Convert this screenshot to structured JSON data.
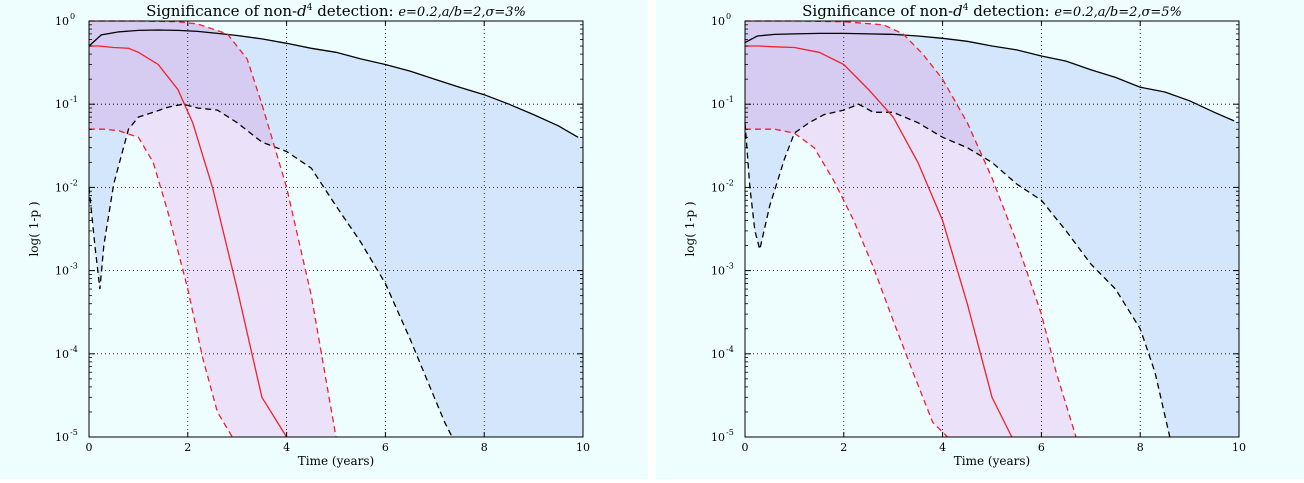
{
  "chart_data": [
    {
      "type": "line",
      "title_prefix": "Significance of non-",
      "title_d": "d",
      "title_exp": "4",
      "title_middle": " detection: ",
      "title_params": "e=0.2,a/b=2,σ=3%",
      "xlabel": "Time (years)",
      "ylabel": "log( 1-p )",
      "xlim": [
        0,
        10
      ],
      "ylim_log10": [
        -5,
        0
      ],
      "yscale": "log",
      "grid": true,
      "x_ticks": [
        "0",
        "2",
        "4",
        "6",
        "8",
        "10"
      ],
      "y_ticks": [
        "10",
        "10",
        "10",
        "10",
        "10",
        "10"
      ],
      "y_tick_exps": [
        "0",
        "-1",
        "-2",
        "-3",
        "-4",
        "-5"
      ],
      "colors": {
        "blue_band": "#d4e6fb",
        "purple_band": "#d6cbf0",
        "pink_band": "#eadcf7",
        "background": "#eefefe",
        "black": "#000000",
        "red": "#f0222b"
      },
      "series": [
        {
          "style": "black-solid",
          "x": [
            0,
            0.25,
            0.6,
            1.0,
            1.4,
            1.8,
            2.2,
            2.6,
            3.0,
            3.5,
            4.0,
            4.5,
            5.0,
            5.5,
            6.0,
            6.5,
            7.0,
            7.5,
            8.0,
            8.5,
            9.0,
            9.5,
            9.9
          ],
          "y": [
            0.5,
            0.68,
            0.74,
            0.77,
            0.78,
            0.77,
            0.75,
            0.71,
            0.67,
            0.61,
            0.54,
            0.47,
            0.42,
            0.35,
            0.3,
            0.25,
            0.2,
            0.16,
            0.13,
            0.1,
            0.075,
            0.055,
            0.04
          ]
        },
        {
          "style": "black-dashed",
          "x": [
            0,
            0.12,
            0.22,
            0.3,
            0.5,
            0.8,
            1.0,
            1.3,
            1.6,
            1.9,
            2.2,
            2.6,
            3.0,
            3.5,
            4.0,
            4.5,
            5.0,
            5.5,
            6.0,
            6.5,
            6.9,
            7.2,
            7.35
          ],
          "y": [
            0.01,
            0.002,
            0.0006,
            0.002,
            0.011,
            0.05,
            0.07,
            0.08,
            0.092,
            0.1,
            0.09,
            0.085,
            0.06,
            0.035,
            0.027,
            0.017,
            0.006,
            0.0022,
            0.0007,
            0.00015,
            4e-05,
            1.5e-05,
            1e-05
          ]
        },
        {
          "style": "red-solid",
          "x": [
            0,
            0.2,
            0.5,
            0.8,
            1.0,
            1.4,
            1.8,
            2.1,
            2.5,
            3.0,
            3.5,
            4.0
          ],
          "y": [
            0.5,
            0.5,
            0.48,
            0.47,
            0.42,
            0.3,
            0.15,
            0.06,
            0.01,
            0.0006,
            3e-05,
            1e-05
          ]
        },
        {
          "style": "red-dashed-upper",
          "x": [
            0,
            0.3,
            1.0,
            1.8,
            2.2,
            2.8,
            3.2,
            3.5,
            4.0,
            4.5,
            5.0
          ],
          "y": [
            1.0,
            1.0,
            1.0,
            0.98,
            0.92,
            0.7,
            0.35,
            0.1,
            0.01,
            0.0005,
            1e-05
          ]
        },
        {
          "style": "red-dashed-lower",
          "x": [
            0,
            0.3,
            0.6,
            1.0,
            1.3,
            1.6,
            2.0,
            2.3,
            2.6,
            2.9
          ],
          "y": [
            0.05,
            0.05,
            0.048,
            0.04,
            0.02,
            0.005,
            0.0006,
            9e-05,
            2e-05,
            1e-05
          ]
        }
      ]
    },
    {
      "type": "line",
      "title_prefix": "Significance of non-",
      "title_d": "d",
      "title_exp": "4",
      "title_middle": " detection: ",
      "title_params": "e=0.2,a/b=2,σ=5%",
      "xlabel": "Time (years)",
      "ylabel": "log( 1-p )",
      "xlim": [
        0,
        10
      ],
      "ylim_log10": [
        -5,
        0
      ],
      "yscale": "log",
      "grid": true,
      "x_ticks": [
        "0",
        "2",
        "4",
        "6",
        "8",
        "10"
      ],
      "y_ticks": [
        "10",
        "10",
        "10",
        "10",
        "10",
        "10"
      ],
      "y_tick_exps": [
        "0",
        "-1",
        "-2",
        "-3",
        "-4",
        "-5"
      ],
      "colors": {
        "blue_band": "#d4e6fb",
        "purple_band": "#d6cbf0",
        "pink_band": "#eadcf7",
        "background": "#eefefe",
        "black": "#000000",
        "red": "#f0222b"
      },
      "series": [
        {
          "style": "black-solid",
          "x": [
            0,
            0.25,
            0.6,
            1.0,
            1.5,
            2.0,
            2.5,
            3.0,
            3.5,
            4.0,
            4.5,
            5.0,
            5.5,
            6.0,
            6.5,
            7.0,
            7.5,
            8.0,
            8.5,
            9.0,
            9.5,
            9.9
          ],
          "y": [
            0.55,
            0.66,
            0.69,
            0.7,
            0.71,
            0.71,
            0.7,
            0.69,
            0.66,
            0.62,
            0.57,
            0.5,
            0.45,
            0.38,
            0.33,
            0.26,
            0.21,
            0.16,
            0.14,
            0.11,
            0.08,
            0.063
          ]
        },
        {
          "style": "black-dashed",
          "x": [
            0,
            0.1,
            0.2,
            0.3,
            0.5,
            0.8,
            1.0,
            1.3,
            1.6,
            2.0,
            2.3,
            2.6,
            3.0,
            3.5,
            4.0,
            4.5,
            5.0,
            5.5,
            6.0,
            6.5,
            7.0,
            7.5,
            8.0,
            8.3,
            8.6
          ],
          "y": [
            0.06,
            0.01,
            0.003,
            0.0018,
            0.006,
            0.022,
            0.045,
            0.06,
            0.075,
            0.085,
            0.1,
            0.08,
            0.08,
            0.06,
            0.04,
            0.03,
            0.02,
            0.011,
            0.007,
            0.003,
            0.0012,
            0.0006,
            0.0002,
            6e-05,
            1e-05
          ]
        },
        {
          "style": "red-solid",
          "x": [
            0,
            0.3,
            0.6,
            1.0,
            1.5,
            2.0,
            2.5,
            3.0,
            3.5,
            4.0,
            4.5,
            5.0,
            5.4
          ],
          "y": [
            0.5,
            0.5,
            0.49,
            0.48,
            0.42,
            0.3,
            0.15,
            0.07,
            0.02,
            0.004,
            0.0004,
            3e-05,
            1e-05
          ]
        },
        {
          "style": "red-dashed-upper",
          "x": [
            0,
            0.3,
            1.0,
            2.0,
            2.8,
            3.2,
            3.6,
            4.0,
            4.5,
            5.0,
            5.5,
            6.0,
            6.3,
            6.7
          ],
          "y": [
            1.0,
            1.0,
            1.0,
            0.98,
            0.9,
            0.7,
            0.4,
            0.2,
            0.06,
            0.013,
            0.0022,
            0.0003,
            6e-05,
            1e-05
          ]
        },
        {
          "style": "red-dashed-lower",
          "x": [
            0,
            0.3,
            0.6,
            1.0,
            1.4,
            1.8,
            2.2,
            2.6,
            3.0,
            3.4,
            3.8,
            4.1
          ],
          "y": [
            0.05,
            0.05,
            0.05,
            0.045,
            0.03,
            0.012,
            0.004,
            0.0011,
            0.00025,
            6e-05,
            1.5e-05,
            1e-05
          ]
        }
      ]
    }
  ]
}
